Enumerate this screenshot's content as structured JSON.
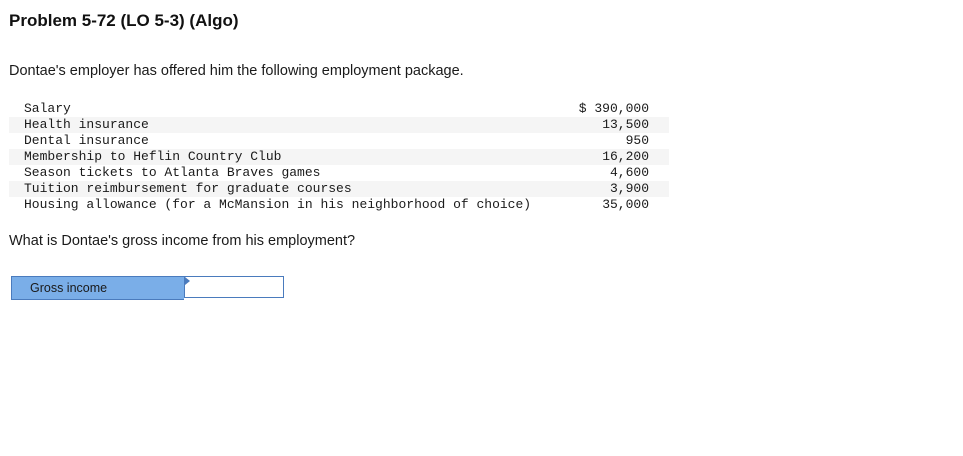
{
  "problem": {
    "title": "Problem 5-72 (LO 5-3) (Algo)",
    "intro": "Dontae's employer has offered him the following employment package.",
    "question": "What is Dontae's gross income from his employment?"
  },
  "package": [
    {
      "label": "Salary",
      "amount": "$ 390,000"
    },
    {
      "label": "Health insurance",
      "amount": "13,500"
    },
    {
      "label": "Dental insurance",
      "amount": "950"
    },
    {
      "label": "Membership to Heflin Country Club",
      "amount": "16,200"
    },
    {
      "label": "Season tickets to Atlanta Braves games",
      "amount": "4,600"
    },
    {
      "label": "Tuition reimbursement for graduate courses",
      "amount": "3,900"
    },
    {
      "label": "Housing allowance (for a McMansion in his neighborhood of choice)",
      "amount": "35,000"
    }
  ],
  "answer": {
    "label": "Gross income",
    "value": "",
    "colors": {
      "label_bg": "#7aaee8",
      "border": "#4a7bbd"
    }
  }
}
